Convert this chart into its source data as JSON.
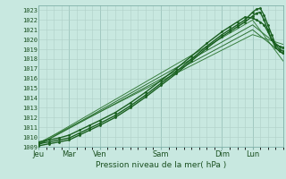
{
  "bg_color": "#c8e8e0",
  "grid_color": "#b0d0c8",
  "line_colors": [
    "#1a6020",
    "#1a6020",
    "#1a6020",
    "#2a7030",
    "#3a8040",
    "#3a8040",
    "#2a7030"
  ],
  "line_widths": [
    1.0,
    1.0,
    1.0,
    0.7,
    0.7,
    0.7,
    0.7
  ],
  "use_markers": [
    true,
    true,
    true,
    false,
    false,
    false,
    false
  ],
  "ylim": [
    1009,
    1023.5
  ],
  "yticks": [
    1009,
    1010,
    1011,
    1012,
    1013,
    1014,
    1015,
    1016,
    1017,
    1018,
    1019,
    1020,
    1021,
    1022,
    1023
  ],
  "xlabel": "Pression niveau de la mer( hPa )",
  "day_labels": [
    "Jeu",
    "Mar",
    "Ven",
    "Sam",
    "Dim",
    "Lun"
  ],
  "day_positions": [
    0,
    24,
    48,
    96,
    144,
    168
  ],
  "total_hours": 192,
  "lines_x": [
    [
      0,
      8,
      16,
      24,
      32,
      40,
      48,
      60,
      72,
      84,
      96,
      108,
      120,
      132,
      144,
      150,
      156,
      162,
      168,
      171,
      174,
      177,
      180,
      183,
      186,
      189,
      192
    ],
    [
      0,
      8,
      16,
      24,
      32,
      40,
      48,
      60,
      72,
      84,
      96,
      108,
      120,
      132,
      144,
      150,
      156,
      162,
      168,
      171,
      174,
      177,
      180,
      183,
      186,
      189,
      192
    ],
    [
      0,
      8,
      16,
      24,
      32,
      40,
      48,
      60,
      72,
      84,
      96,
      108,
      120,
      132,
      144,
      150,
      156,
      162,
      168,
      171,
      174,
      177,
      180,
      183,
      186,
      189,
      192
    ],
    [
      0,
      168,
      192
    ],
    [
      0,
      168,
      192
    ],
    [
      0,
      168,
      192
    ],
    [
      0,
      168,
      192
    ]
  ],
  "lines_y": [
    [
      1009.3,
      1009.5,
      1009.7,
      1009.9,
      1010.4,
      1010.9,
      1011.4,
      1012.2,
      1013.2,
      1014.3,
      1015.5,
      1016.7,
      1018.0,
      1019.3,
      1020.5,
      1021.0,
      1021.5,
      1022.0,
      1022.8,
      1023.1,
      1023.2,
      1022.5,
      1021.5,
      1020.5,
      1019.5,
      1019.0,
      1018.8
    ],
    [
      1009.1,
      1009.3,
      1009.5,
      1009.7,
      1010.2,
      1010.7,
      1011.2,
      1012.0,
      1013.0,
      1014.1,
      1015.3,
      1016.5,
      1017.8,
      1019.1,
      1020.3,
      1020.8,
      1021.3,
      1021.8,
      1022.4,
      1022.7,
      1022.8,
      1022.0,
      1021.0,
      1020.0,
      1019.2,
      1018.8,
      1018.6
    ],
    [
      1009.5,
      1009.7,
      1009.9,
      1010.2,
      1010.7,
      1011.2,
      1011.7,
      1012.5,
      1013.5,
      1014.6,
      1015.8,
      1017.0,
      1018.3,
      1019.6,
      1020.8,
      1021.3,
      1021.8,
      1022.3,
      1022.2,
      1022.0,
      1021.8,
      1021.5,
      1020.8,
      1020.0,
      1019.5,
      1019.3,
      1019.2
    ],
    [
      1009.2,
      1021.5,
      1019.0
    ],
    [
      1009.3,
      1022.0,
      1017.8
    ],
    [
      1009.4,
      1020.5,
      1019.5
    ],
    [
      1009.2,
      1021.0,
      1018.5
    ]
  ],
  "vline_color": "#90c0b8",
  "vline_positions": [
    24,
    48,
    96,
    144,
    168
  ],
  "tick_color": "#1a5020",
  "spine_color": "#80b0a8"
}
